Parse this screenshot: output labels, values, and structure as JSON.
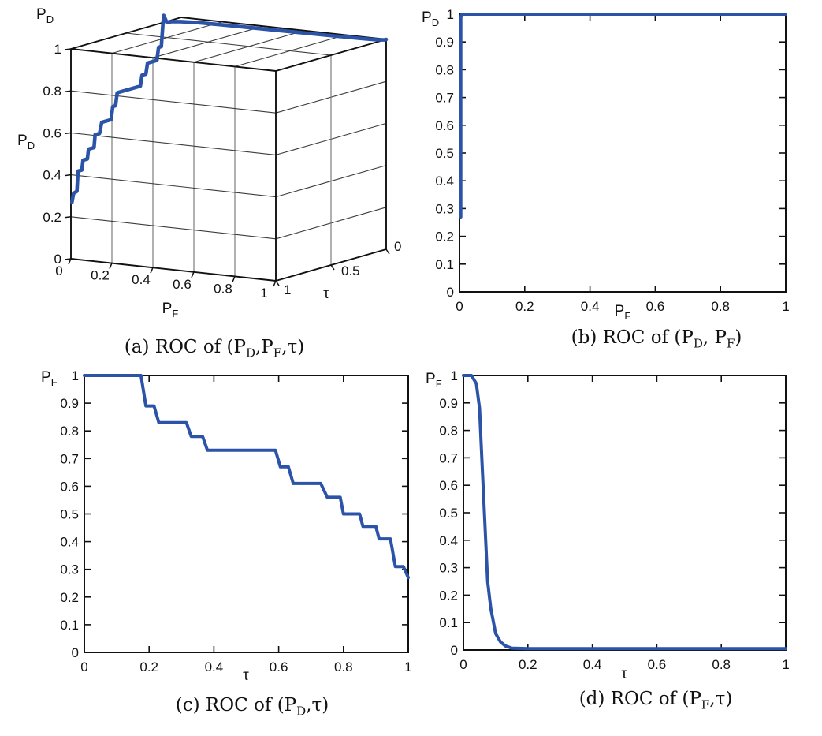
{
  "figure": {
    "background": "#ffffff",
    "curve_color": "#2b53a7",
    "axis_color": "#111111",
    "grid_color": "#3d3d3d",
    "grid_color_light": "#7d7d7d"
  },
  "chart_data": [
    {
      "id": "a",
      "type": "line3d",
      "caption": "(a) ROC of (P_D,P_F,τ)",
      "x_axis": {
        "label": "P_F",
        "range": [
          0,
          1
        ],
        "tick_values": [
          0,
          0.2,
          0.4,
          0.6,
          0.8,
          1
        ],
        "tick_labels": [
          "0",
          "0.2",
          "0.4",
          "0.6",
          "0.8",
          "1"
        ]
      },
      "tau_axis": {
        "label": "τ",
        "range": [
          0,
          1
        ],
        "tick_values": [
          1,
          0.5,
          0
        ],
        "tick_labels": [
          "1",
          "0.5",
          "0"
        ]
      },
      "z_axis": {
        "label": "P_D",
        "top_label": "P_D",
        "range": [
          0,
          1
        ],
        "tick_values": [
          0,
          0.2,
          0.4,
          0.6,
          0.8,
          1
        ],
        "tick_labels": [
          "0",
          "0.2",
          "0.4",
          "0.6",
          "0.8",
          "1"
        ]
      },
      "series": [
        {
          "name": "roc-3d-curve",
          "points_pf_tau_pd": [
            [
              0.005,
              1.0,
              0.27
            ],
            [
              0.005,
              0.985,
              0.31
            ],
            [
              0.005,
              0.955,
              0.315
            ],
            [
              0.005,
              0.945,
              0.41
            ],
            [
              0.005,
              0.91,
              0.41
            ],
            [
              0.005,
              0.9,
              0.455
            ],
            [
              0.005,
              0.86,
              0.455
            ],
            [
              0.005,
              0.85,
              0.5
            ],
            [
              0.005,
              0.8,
              0.5
            ],
            [
              0.005,
              0.79,
              0.56
            ],
            [
              0.005,
              0.75,
              0.56
            ],
            [
              0.005,
              0.73,
              0.61
            ],
            [
              0.005,
              0.645,
              0.61
            ],
            [
              0.005,
              0.63,
              0.67
            ],
            [
              0.005,
              0.605,
              0.67
            ],
            [
              0.005,
              0.59,
              0.73
            ],
            [
              0.005,
              0.38,
              0.73
            ],
            [
              0.005,
              0.365,
              0.78
            ],
            [
              0.005,
              0.33,
              0.78
            ],
            [
              0.005,
              0.315,
              0.83
            ],
            [
              0.005,
              0.23,
              0.83
            ],
            [
              0.005,
              0.215,
              0.89
            ],
            [
              0.005,
              0.19,
              0.89
            ],
            [
              0.005,
              0.175,
              1.0
            ],
            [
              0.005,
              0.168,
              1.035
            ],
            [
              0.01,
              0.15,
              1.0
            ],
            [
              0.02,
              0.12,
              1.0
            ],
            [
              0.05,
              0.1,
              1.0
            ],
            [
              0.12,
              0.08,
              1.0
            ],
            [
              0.25,
              0.07,
              1.0
            ],
            [
              0.5,
              0.06,
              1.0
            ],
            [
              0.75,
              0.05,
              1.0
            ],
            [
              0.9,
              0.04,
              1.0
            ],
            [
              0.97,
              0.03,
              1.0
            ],
            [
              1.0,
              0.015,
              1.0
            ],
            [
              1.0,
              0.0,
              1.0
            ]
          ]
        }
      ]
    },
    {
      "id": "b",
      "type": "line",
      "caption": "(b) ROC of (P_D, P_F)",
      "xlabel": "P_F",
      "ylabel": "P_D",
      "xlim": [
        0,
        1
      ],
      "ylim": [
        0,
        1
      ],
      "x_tick_values": [
        0,
        0.2,
        0.4,
        0.6,
        0.8,
        1
      ],
      "x_tick_labels": [
        "0",
        "0.2",
        "0.4",
        "0.6",
        "0.8",
        "1"
      ],
      "y_tick_values": [
        0,
        0.1,
        0.2,
        0.3,
        0.4,
        0.5,
        0.6,
        0.7,
        0.8,
        0.9,
        1
      ],
      "y_tick_labels": [
        "0",
        "0.1",
        "0.2",
        "0.3",
        "0.4",
        "0.5",
        "0.6",
        "0.7",
        "0.8",
        "0.9",
        "1"
      ],
      "series": [
        {
          "name": "roc-pd-pf",
          "points": [
            [
              0.004,
              0.27
            ],
            [
              0.004,
              0.99
            ],
            [
              0.007,
              1.0
            ],
            [
              1.0,
              1.0
            ]
          ]
        }
      ]
    },
    {
      "id": "c",
      "type": "line",
      "caption": "(c) ROC of (P_D,τ)",
      "xlabel": "τ",
      "ylabel": "P_F",
      "xlim": [
        0,
        1
      ],
      "ylim": [
        0,
        1
      ],
      "x_tick_values": [
        0,
        0.2,
        0.4,
        0.6,
        0.8,
        1
      ],
      "x_tick_labels": [
        "0",
        "0.2",
        "0.4",
        "0.6",
        "0.8",
        "1"
      ],
      "y_tick_values": [
        0,
        0.1,
        0.2,
        0.3,
        0.4,
        0.5,
        0.6,
        0.7,
        0.8,
        0.9,
        1
      ],
      "y_tick_labels": [
        "0",
        "0.1",
        "0.2",
        "0.3",
        "0.4",
        "0.5",
        "0.6",
        "0.7",
        "0.8",
        "0.9",
        "1"
      ],
      "series": [
        {
          "name": "roc-pd-tau-staircase",
          "points": [
            [
              0,
              1
            ],
            [
              0.175,
              1
            ],
            [
              0.19,
              0.89
            ],
            [
              0.215,
              0.89
            ],
            [
              0.23,
              0.83
            ],
            [
              0.315,
              0.83
            ],
            [
              0.33,
              0.78
            ],
            [
              0.365,
              0.78
            ],
            [
              0.38,
              0.73
            ],
            [
              0.59,
              0.73
            ],
            [
              0.605,
              0.67
            ],
            [
              0.63,
              0.67
            ],
            [
              0.645,
              0.61
            ],
            [
              0.73,
              0.61
            ],
            [
              0.75,
              0.56
            ],
            [
              0.79,
              0.56
            ],
            [
              0.8,
              0.5
            ],
            [
              0.85,
              0.5
            ],
            [
              0.86,
              0.455
            ],
            [
              0.9,
              0.455
            ],
            [
              0.91,
              0.41
            ],
            [
              0.945,
              0.41
            ],
            [
              0.96,
              0.31
            ],
            [
              0.985,
              0.31
            ],
            [
              1.0,
              0.27
            ]
          ]
        }
      ]
    },
    {
      "id": "d",
      "type": "line",
      "caption": "(d) ROC of (P_F,τ)",
      "xlabel": "τ",
      "ylabel": "P_F",
      "xlim": [
        0,
        1
      ],
      "ylim": [
        0,
        1
      ],
      "x_tick_values": [
        0,
        0.2,
        0.4,
        0.6,
        0.8,
        1
      ],
      "x_tick_labels": [
        "0",
        "0.2",
        "0.4",
        "0.6",
        "0.8",
        "1"
      ],
      "y_tick_values": [
        0,
        0.1,
        0.2,
        0.3,
        0.4,
        0.5,
        0.6,
        0.7,
        0.8,
        0.9,
        1
      ],
      "y_tick_labels": [
        "0",
        "0.1",
        "0.2",
        "0.3",
        "0.4",
        "0.5",
        "0.6",
        "0.7",
        "0.8",
        "0.9",
        "1"
      ],
      "series": [
        {
          "name": "roc-pf-tau-sigmoid",
          "points": [
            [
              0,
              1
            ],
            [
              0.025,
              1
            ],
            [
              0.04,
              0.97
            ],
            [
              0.05,
              0.88
            ],
            [
              0.055,
              0.75
            ],
            [
              0.065,
              0.5
            ],
            [
              0.075,
              0.25
            ],
            [
              0.085,
              0.15
            ],
            [
              0.1,
              0.06
            ],
            [
              0.115,
              0.03
            ],
            [
              0.13,
              0.015
            ],
            [
              0.15,
              0.007
            ],
            [
              0.2,
              0.005
            ],
            [
              0.6,
              0.005
            ],
            [
              1.0,
              0.005
            ]
          ]
        }
      ]
    }
  ]
}
